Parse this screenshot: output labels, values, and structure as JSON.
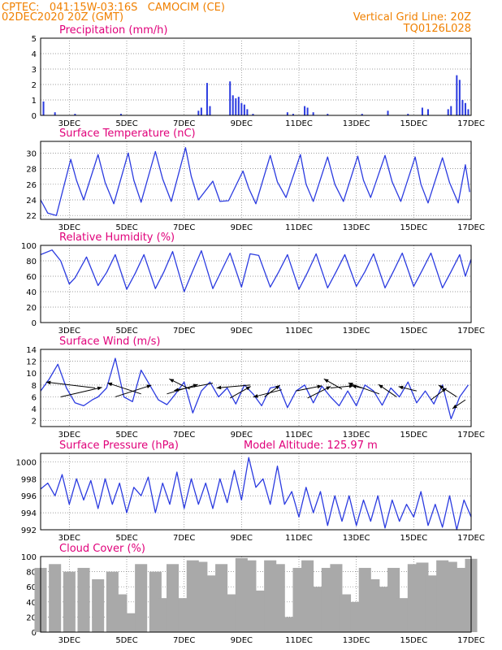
{
  "header": {
    "line1": "CPTEC:   041:15W-03:16S   CAMOCIM (CE)",
    "line2": "02DEC2020 20Z (GMT)",
    "vertical_grid": "Vertical Grid Line: 20Z",
    "code": "TQ0126L028"
  },
  "colors": {
    "header": "#f08000",
    "title": "#e0007a",
    "series": "#2b3be0",
    "cloud": "#a9a9a9",
    "grid": "#7f7f7f"
  },
  "x_axis": {
    "labels": [
      "3DEC",
      "5DEC",
      "7DEC",
      "9DEC",
      "11DEC",
      "13DEC",
      "15DEC",
      "17DEC"
    ],
    "label_days": [
      3,
      5,
      7,
      9,
      11,
      13,
      15,
      17
    ],
    "range_days": [
      2,
      17
    ]
  },
  "chart_data": [
    {
      "type": "bar",
      "id": "precip",
      "title": "Precipitation (mm/h)",
      "ylim": [
        0,
        5
      ],
      "yticks": [
        0,
        1,
        2,
        3,
        4,
        5
      ],
      "x": [
        2.1,
        2.5,
        3.2,
        4.8,
        7.5,
        7.6,
        7.8,
        7.9,
        8.6,
        8.7,
        8.8,
        8.9,
        9.0,
        9.1,
        9.2,
        9.4,
        10.6,
        10.8,
        11.2,
        11.3,
        11.5,
        12.0,
        13.2,
        14.1,
        14.8,
        15.3,
        15.5,
        16.2,
        16.3,
        16.5,
        16.6,
        16.7,
        16.8,
        16.9
      ],
      "values": [
        0.9,
        0.2,
        0.1,
        0.1,
        0.3,
        0.5,
        2.1,
        0.6,
        2.2,
        1.3,
        1.1,
        1.2,
        0.8,
        0.7,
        0.4,
        0.1,
        0.2,
        0.1,
        0.6,
        0.5,
        0.2,
        0.1,
        0.1,
        0.3,
        0.1,
        0.5,
        0.4,
        0.4,
        0.6,
        2.6,
        2.3,
        1.0,
        0.8,
        0.4
      ]
    },
    {
      "type": "line",
      "id": "temp",
      "title": "Surface Temperature (nC)",
      "ylim": [
        21.5,
        31.5
      ],
      "yticks": [
        22,
        24,
        26,
        28,
        30
      ],
      "x": [
        2.0,
        2.25,
        2.55,
        3.05,
        3.25,
        3.5,
        4.0,
        4.25,
        4.55,
        5.05,
        5.25,
        5.5,
        6.0,
        6.25,
        6.55,
        7.05,
        7.25,
        7.5,
        8.0,
        8.25,
        8.55,
        9.05,
        9.25,
        9.5,
        10.0,
        10.25,
        10.55,
        11.05,
        11.25,
        11.5,
        12.0,
        12.25,
        12.55,
        13.05,
        13.25,
        13.5,
        14.0,
        14.25,
        14.55,
        15.05,
        15.25,
        15.5,
        16.0,
        16.25,
        16.55,
        16.8,
        16.95
      ],
      "values": [
        24.0,
        22.3,
        22.0,
        29.2,
        26.5,
        24.0,
        29.8,
        26.2,
        23.5,
        30.0,
        26.5,
        23.7,
        30.2,
        26.7,
        23.8,
        30.7,
        27.0,
        24.0,
        26.4,
        23.8,
        23.9,
        27.7,
        25.5,
        23.5,
        29.7,
        26.3,
        24.3,
        29.8,
        26.0,
        23.8,
        29.5,
        26.0,
        23.8,
        29.6,
        26.5,
        24.3,
        29.7,
        26.3,
        23.8,
        29.5,
        26.0,
        23.6,
        29.4,
        26.2,
        23.6,
        28.5,
        25.0
      ]
    },
    {
      "type": "line",
      "id": "rh",
      "title": "Relative Humidity (%)",
      "ylim": [
        0,
        100
      ],
      "yticks": [
        0,
        20,
        40,
        60,
        80,
        100
      ],
      "x": [
        2.0,
        2.4,
        2.7,
        3.0,
        3.2,
        3.6,
        4.0,
        4.3,
        4.6,
        5.0,
        5.3,
        5.6,
        6.0,
        6.3,
        6.6,
        7.0,
        7.3,
        7.6,
        8.0,
        8.3,
        8.6,
        9.0,
        9.3,
        9.6,
        10.0,
        10.3,
        10.6,
        11.0,
        11.3,
        11.6,
        12.0,
        12.3,
        12.6,
        13.0,
        13.3,
        13.6,
        14.0,
        14.3,
        14.6,
        15.0,
        15.3,
        15.6,
        16.0,
        16.3,
        16.6,
        16.8,
        17.0
      ],
      "values": [
        88,
        94,
        80,
        50,
        58,
        85,
        48,
        65,
        88,
        43,
        64,
        88,
        44,
        66,
        92,
        40,
        67,
        93,
        44,
        67,
        90,
        46,
        89,
        87,
        46,
        66,
        88,
        43,
        65,
        89,
        45,
        66,
        88,
        47,
        66,
        89,
        45,
        67,
        90,
        47,
        68,
        90,
        45,
        66,
        88,
        60,
        82
      ]
    },
    {
      "type": "line",
      "id": "wind",
      "title": "Surface Wind (m/s)",
      "ylim": [
        1,
        14
      ],
      "yticks": [
        2,
        4,
        6,
        8,
        10,
        12,
        14
      ],
      "x": [
        2.0,
        2.3,
        2.6,
        2.9,
        3.2,
        3.5,
        3.8,
        4.0,
        4.3,
        4.6,
        4.9,
        5.2,
        5.5,
        5.8,
        6.1,
        6.4,
        6.7,
        7.0,
        7.3,
        7.6,
        7.9,
        8.2,
        8.5,
        8.8,
        9.1,
        9.4,
        9.7,
        10.0,
        10.3,
        10.6,
        10.9,
        11.2,
        11.5,
        11.8,
        12.1,
        12.4,
        12.7,
        13.0,
        13.3,
        13.6,
        13.9,
        14.2,
        14.5,
        14.8,
        15.1,
        15.4,
        15.7,
        16.0,
        16.3,
        16.6,
        16.9
      ],
      "values": [
        7.0,
        9.0,
        11.5,
        7.5,
        5.0,
        4.5,
        5.5,
        6.0,
        7.5,
        12.5,
        6.0,
        5.2,
        10.5,
        8.0,
        5.5,
        4.7,
        6.5,
        8.5,
        3.3,
        7.0,
        8.5,
        6.0,
        7.5,
        4.8,
        8.0,
        6.5,
        4.5,
        7.5,
        7.8,
        4.2,
        7.0,
        8.0,
        5.0,
        7.8,
        6.0,
        4.5,
        7.0,
        4.5,
        8.0,
        7.0,
        4.6,
        7.5,
        6.0,
        8.5,
        5.0,
        7.0,
        4.8,
        8.0,
        2.3,
        6.0,
        8.0
      ],
      "arrows": [
        {
          "x": 2.7,
          "y": 6.0,
          "u": 1.6,
          "v": 1.3
        },
        {
          "x": 3.9,
          "y": 7.5,
          "u": -1.9,
          "v": 0.8
        },
        {
          "x": 4.6,
          "y": 6.0,
          "u": 1.4,
          "v": 1.6
        },
        {
          "x": 5.5,
          "y": 6.5,
          "u": -1.3,
          "v": 1.5
        },
        {
          "x": 6.4,
          "y": 6.5,
          "u": 1.2,
          "v": 1.3
        },
        {
          "x": 7.2,
          "y": 7.3,
          "u": -0.8,
          "v": 1.4
        },
        {
          "x": 8.0,
          "y": 8.3,
          "u": -1.5,
          "v": -1.0
        },
        {
          "x": 8.6,
          "y": 5.8,
          "u": 0.8,
          "v": 1.6
        },
        {
          "x": 9.3,
          "y": 8.0,
          "u": -1.3,
          "v": -0.4
        },
        {
          "x": 9.8,
          "y": 6.0,
          "u": 0.6,
          "v": 1.6
        },
        {
          "x": 10.4,
          "y": 7.2,
          "u": -1.1,
          "v": -1.0
        },
        {
          "x": 10.9,
          "y": 7.0,
          "u": 1.0,
          "v": 0.7
        },
        {
          "x": 11.3,
          "y": 5.8,
          "u": 0.9,
          "v": 1.6
        },
        {
          "x": 12.1,
          "y": 7.5,
          "u": 0.9,
          "v": 0.3
        },
        {
          "x": 12.5,
          "y": 7.3,
          "u": -0.7,
          "v": 1.4
        },
        {
          "x": 13.2,
          "y": 7.5,
          "u": -0.4,
          "v": 0.3
        },
        {
          "x": 13.8,
          "y": 6.5,
          "u": -1.2,
          "v": 1.5
        },
        {
          "x": 14.4,
          "y": 6.0,
          "u": -0.7,
          "v": 1.7
        },
        {
          "x": 15.1,
          "y": 7.0,
          "u": -0.7,
          "v": 0.6
        },
        {
          "x": 15.6,
          "y": 5.5,
          "u": 0.6,
          "v": 1.6
        },
        {
          "x": 16.5,
          "y": 6.0,
          "u": -0.7,
          "v": 1.6
        },
        {
          "x": 16.8,
          "y": 5.5,
          "u": -0.5,
          "v": -1.2
        }
      ]
    },
    {
      "type": "line",
      "id": "pres",
      "title": "Surface Pressure (hPa)",
      "subtitle": "Model Altitude: 125.97 m",
      "ylim": [
        992,
        1001
      ],
      "yticks": [
        992,
        994,
        996,
        998,
        1000
      ],
      "x": [
        2.0,
        2.25,
        2.5,
        2.75,
        3.0,
        3.25,
        3.5,
        3.75,
        4.0,
        4.25,
        4.5,
        4.75,
        5.0,
        5.25,
        5.5,
        5.75,
        6.0,
        6.25,
        6.5,
        6.75,
        7.0,
        7.25,
        7.5,
        7.75,
        8.0,
        8.25,
        8.5,
        8.75,
        9.0,
        9.25,
        9.5,
        9.75,
        10.0,
        10.25,
        10.5,
        10.75,
        11.0,
        11.25,
        11.5,
        11.75,
        12.0,
        12.25,
        12.5,
        12.75,
        13.0,
        13.25,
        13.5,
        13.75,
        14.0,
        14.25,
        14.5,
        14.75,
        15.0,
        15.25,
        15.5,
        15.75,
        16.0,
        16.25,
        16.5,
        16.75,
        17.0
      ],
      "values": [
        996.8,
        997.5,
        996.0,
        998.5,
        995.0,
        998.0,
        995.5,
        997.8,
        994.5,
        998.0,
        995.0,
        997.5,
        994.0,
        997.0,
        996.0,
        998.2,
        994.0,
        997.5,
        995.0,
        998.8,
        994.5,
        998.0,
        995.0,
        997.5,
        994.5,
        998.0,
        995.2,
        999.0,
        995.5,
        1000.5,
        997.0,
        998.0,
        995.0,
        999.5,
        995.0,
        996.5,
        993.5,
        997.0,
        994.0,
        996.5,
        992.5,
        996.0,
        993.0,
        996.0,
        992.5,
        995.5,
        993.0,
        996.0,
        992.2,
        995.5,
        993.0,
        995.0,
        993.5,
        996.5,
        992.5,
        995.0,
        992.3,
        996.0,
        992.0,
        995.5,
        993.5
      ]
    },
    {
      "type": "bar",
      "id": "cloud",
      "title": "Cloud Cover (%)",
      "ylim": [
        0,
        100
      ],
      "yticks": [
        0,
        20,
        40,
        60,
        80,
        100
      ],
      "x": [
        2.0,
        2.5,
        3.0,
        3.5,
        4.0,
        4.5,
        4.8,
        5.0,
        5.2,
        5.5,
        6.0,
        6.3,
        6.6,
        7.0,
        7.3,
        7.6,
        8.0,
        8.3,
        8.6,
        9.0,
        9.3,
        9.6,
        10.0,
        10.3,
        10.6,
        11.0,
        11.3,
        11.6,
        12.0,
        12.3,
        12.6,
        13.0,
        13.3,
        13.6,
        14.0,
        14.3,
        14.6,
        15.0,
        15.3,
        15.6,
        16.0,
        16.3,
        16.6,
        17.0
      ],
      "values": [
        85,
        90,
        80,
        85,
        70,
        80,
        50,
        10,
        25,
        90,
        80,
        45,
        90,
        45,
        95,
        93,
        75,
        90,
        50,
        98,
        95,
        55,
        95,
        90,
        20,
        85,
        95,
        60,
        85,
        90,
        50,
        40,
        85,
        70,
        60,
        85,
        45,
        90,
        92,
        75,
        95,
        93,
        85,
        97
      ]
    }
  ]
}
